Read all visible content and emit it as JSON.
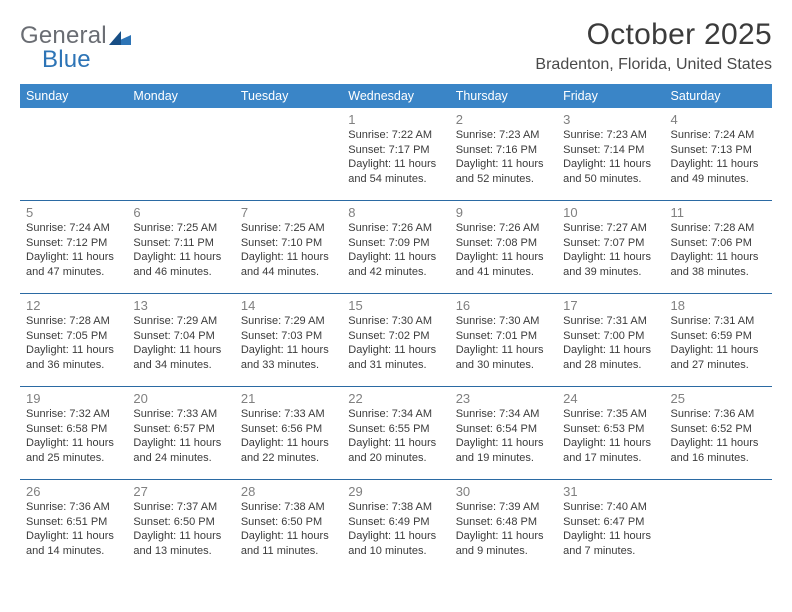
{
  "logo": {
    "part1": "General",
    "part2": "Blue"
  },
  "title": "October 2025",
  "subtitle": "Bradenton, Florida, United States",
  "header_bg": "#3a85c7",
  "days": [
    "Sunday",
    "Monday",
    "Tuesday",
    "Wednesday",
    "Thursday",
    "Friday",
    "Saturday"
  ],
  "weeks": [
    [
      null,
      null,
      null,
      {
        "n": "1",
        "r": "7:22 AM",
        "s": "7:17 PM",
        "d": "11 hours and 54 minutes."
      },
      {
        "n": "2",
        "r": "7:23 AM",
        "s": "7:16 PM",
        "d": "11 hours and 52 minutes."
      },
      {
        "n": "3",
        "r": "7:23 AM",
        "s": "7:14 PM",
        "d": "11 hours and 50 minutes."
      },
      {
        "n": "4",
        "r": "7:24 AM",
        "s": "7:13 PM",
        "d": "11 hours and 49 minutes."
      }
    ],
    [
      {
        "n": "5",
        "r": "7:24 AM",
        "s": "7:12 PM",
        "d": "11 hours and 47 minutes."
      },
      {
        "n": "6",
        "r": "7:25 AM",
        "s": "7:11 PM",
        "d": "11 hours and 46 minutes."
      },
      {
        "n": "7",
        "r": "7:25 AM",
        "s": "7:10 PM",
        "d": "11 hours and 44 minutes."
      },
      {
        "n": "8",
        "r": "7:26 AM",
        "s": "7:09 PM",
        "d": "11 hours and 42 minutes."
      },
      {
        "n": "9",
        "r": "7:26 AM",
        "s": "7:08 PM",
        "d": "11 hours and 41 minutes."
      },
      {
        "n": "10",
        "r": "7:27 AM",
        "s": "7:07 PM",
        "d": "11 hours and 39 minutes."
      },
      {
        "n": "11",
        "r": "7:28 AM",
        "s": "7:06 PM",
        "d": "11 hours and 38 minutes."
      }
    ],
    [
      {
        "n": "12",
        "r": "7:28 AM",
        "s": "7:05 PM",
        "d": "11 hours and 36 minutes."
      },
      {
        "n": "13",
        "r": "7:29 AM",
        "s": "7:04 PM",
        "d": "11 hours and 34 minutes."
      },
      {
        "n": "14",
        "r": "7:29 AM",
        "s": "7:03 PM",
        "d": "11 hours and 33 minutes."
      },
      {
        "n": "15",
        "r": "7:30 AM",
        "s": "7:02 PM",
        "d": "11 hours and 31 minutes."
      },
      {
        "n": "16",
        "r": "7:30 AM",
        "s": "7:01 PM",
        "d": "11 hours and 30 minutes."
      },
      {
        "n": "17",
        "r": "7:31 AM",
        "s": "7:00 PM",
        "d": "11 hours and 28 minutes."
      },
      {
        "n": "18",
        "r": "7:31 AM",
        "s": "6:59 PM",
        "d": "11 hours and 27 minutes."
      }
    ],
    [
      {
        "n": "19",
        "r": "7:32 AM",
        "s": "6:58 PM",
        "d": "11 hours and 25 minutes."
      },
      {
        "n": "20",
        "r": "7:33 AM",
        "s": "6:57 PM",
        "d": "11 hours and 24 minutes."
      },
      {
        "n": "21",
        "r": "7:33 AM",
        "s": "6:56 PM",
        "d": "11 hours and 22 minutes."
      },
      {
        "n": "22",
        "r": "7:34 AM",
        "s": "6:55 PM",
        "d": "11 hours and 20 minutes."
      },
      {
        "n": "23",
        "r": "7:34 AM",
        "s": "6:54 PM",
        "d": "11 hours and 19 minutes."
      },
      {
        "n": "24",
        "r": "7:35 AM",
        "s": "6:53 PM",
        "d": "11 hours and 17 minutes."
      },
      {
        "n": "25",
        "r": "7:36 AM",
        "s": "6:52 PM",
        "d": "11 hours and 16 minutes."
      }
    ],
    [
      {
        "n": "26",
        "r": "7:36 AM",
        "s": "6:51 PM",
        "d": "11 hours and 14 minutes."
      },
      {
        "n": "27",
        "r": "7:37 AM",
        "s": "6:50 PM",
        "d": "11 hours and 13 minutes."
      },
      {
        "n": "28",
        "r": "7:38 AM",
        "s": "6:50 PM",
        "d": "11 hours and 11 minutes."
      },
      {
        "n": "29",
        "r": "7:38 AM",
        "s": "6:49 PM",
        "d": "11 hours and 10 minutes."
      },
      {
        "n": "30",
        "r": "7:39 AM",
        "s": "6:48 PM",
        "d": "11 hours and 9 minutes."
      },
      {
        "n": "31",
        "r": "7:40 AM",
        "s": "6:47 PM",
        "d": "11 hours and 7 minutes."
      },
      null
    ]
  ],
  "labels": {
    "sunrise": "Sunrise: ",
    "sunset": "Sunset: ",
    "daylight": "Daylight: "
  }
}
